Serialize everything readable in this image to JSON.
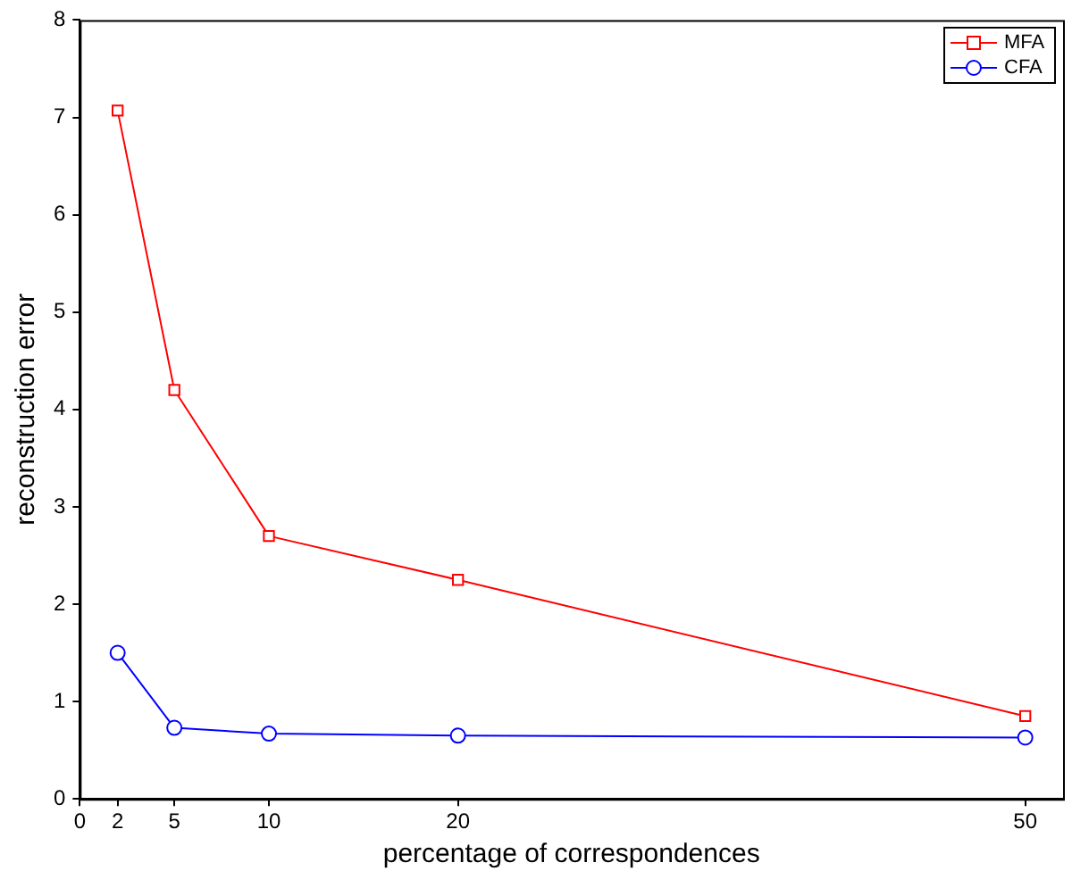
{
  "chart_data": {
    "type": "line",
    "xlabel": "percentage of correspondences",
    "ylabel": "reconstruction error",
    "x": [
      2,
      5,
      10,
      20,
      50
    ],
    "series": [
      {
        "name": "MFA",
        "color": "#ff0000",
        "marker": "square",
        "values": [
          7.07,
          4.2,
          2.7,
          2.25,
          0.85
        ]
      },
      {
        "name": "CFA",
        "color": "#0000ff",
        "marker": "circle",
        "values": [
          1.5,
          0.73,
          0.67,
          0.65,
          0.63
        ]
      }
    ],
    "xlim": [
      0,
      52
    ],
    "xticks": [
      0,
      2,
      5,
      10,
      20,
      50
    ],
    "ylim": [
      0,
      8
    ],
    "yticks": [
      0,
      1,
      2,
      3,
      4,
      5,
      6,
      7,
      8
    ],
    "grid": false,
    "legend": "top right",
    "line_style": "solid"
  }
}
